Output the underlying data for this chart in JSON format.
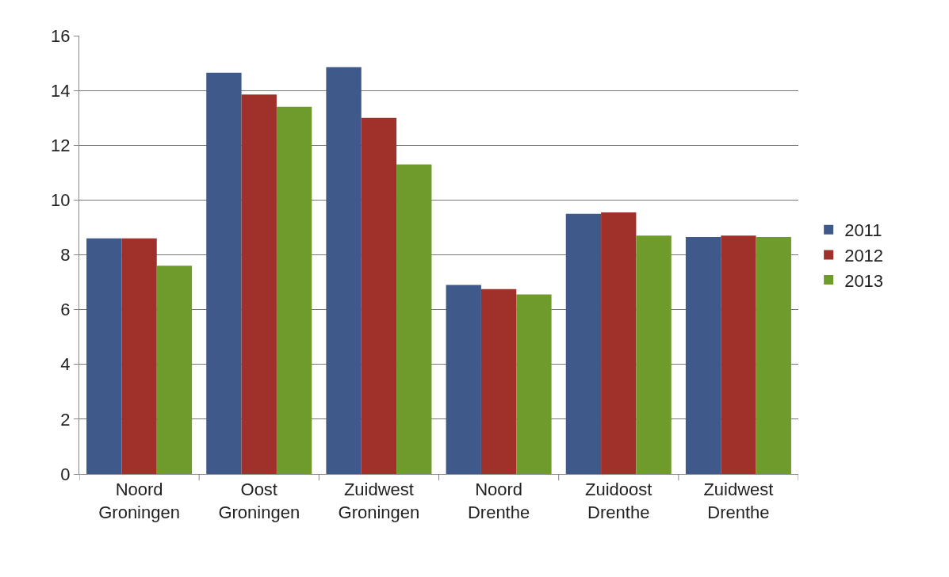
{
  "chart_data": {
    "type": "bar",
    "categories": [
      "Noord\nGroningen",
      "Oost\nGroningen",
      "Zuidwest\nGroningen",
      "Noord\nDrenthe",
      "Zuidoost\nDrenthe",
      "Zuidwest\nDrenthe"
    ],
    "series": [
      {
        "name": "2011",
        "color": "#3f5a8a",
        "values": [
          8.6,
          14.65,
          14.85,
          6.9,
          9.5,
          8.65
        ]
      },
      {
        "name": "2012",
        "color": "#a0302a",
        "values": [
          8.6,
          13.85,
          13.0,
          6.75,
          9.55,
          8.7
        ]
      },
      {
        "name": "2013",
        "color": "#6f9a2c",
        "values": [
          7.6,
          13.4,
          11.3,
          6.55,
          8.7,
          8.65
        ]
      }
    ],
    "ylim": [
      0,
      16
    ],
    "yticks": [
      0,
      2,
      4,
      6,
      8,
      10,
      12,
      14,
      16
    ],
    "grid": "y",
    "legend": "right"
  }
}
